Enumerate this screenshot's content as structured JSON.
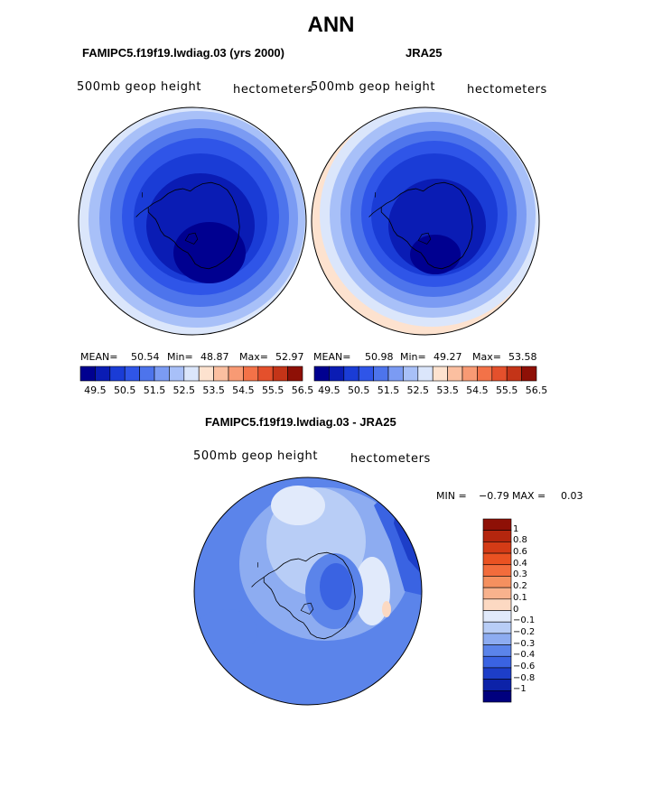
{
  "main_title": "ANN",
  "panels": {
    "model": {
      "title": "FAMIPC5.f19f19.lwdiag.03 (yrs 2000)",
      "field": "500mb  geop  height",
      "units": "hectometers",
      "mean_label": "MEAN=",
      "mean": "50.54",
      "min_label": "Min=",
      "min": "48.87",
      "max_label": "Max=",
      "max": "52.97"
    },
    "obs": {
      "title": "JRA25",
      "field": "500mb  geop  height",
      "units": "hectometers",
      "mean_label": "MEAN=",
      "mean": "50.98",
      "min_label": "Min=",
      "min": "49.27",
      "max_label": "Max=",
      "max": "53.58"
    },
    "diff": {
      "title": "FAMIPC5.f19f19.lwdiag.03 - JRA25",
      "field": "500mb  geop  height",
      "units": "hectometers",
      "min_label": "MIN =",
      "min": "−0.79",
      "max_label": "MAX =",
      "max": "0.03"
    }
  },
  "colorbar_top": {
    "colors": [
      "#000090",
      "#0a1cb4",
      "#1a3cd6",
      "#2f55e8",
      "#4d74ec",
      "#7b9bf3",
      "#a8c0f8",
      "#dbe6fb",
      "#fde2cf",
      "#fbbfa0",
      "#f89a74",
      "#f37248",
      "#e4502c",
      "#c43418",
      "#8e1006"
    ],
    "ticks": [
      "49.5",
      "50.5",
      "51.5",
      "52.5",
      "53.5",
      "54.5",
      "55.5",
      "56.5"
    ]
  },
  "colorbar_diff": {
    "colors": [
      "#8e1006",
      "#b4260e",
      "#d43b16",
      "#ea5222",
      "#f26c3c",
      "#f5905f",
      "#f8b28d",
      "#fcd9c2",
      "#e1eafb",
      "#b8cdf6",
      "#8dacf1",
      "#5b84ea",
      "#3a63e2",
      "#1d3ec8",
      "#0c22a8",
      "#00007e"
    ],
    "ticks": [
      "1",
      "0.8",
      "0.6",
      "0.4",
      "0.3",
      "0.2",
      "0.1",
      "0",
      "−0.1",
      "−0.2",
      "−0.3",
      "−0.4",
      "−0.6",
      "−0.8",
      "−1"
    ]
  }
}
